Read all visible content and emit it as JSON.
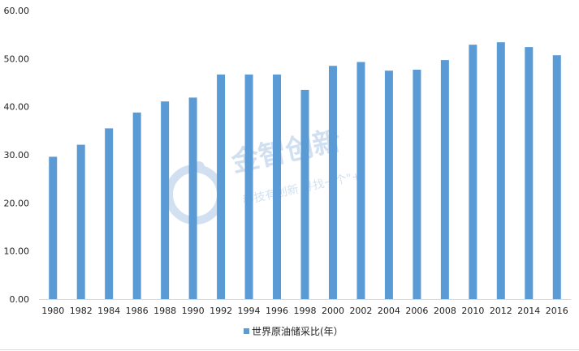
{
  "chart_data": {
    "type": "bar",
    "categories": [
      "1980",
      "1982",
      "1984",
      "1986",
      "1988",
      "1990",
      "1992",
      "1994",
      "1996",
      "1998",
      "2000",
      "2002",
      "2004",
      "2006",
      "2008",
      "2010",
      "2012",
      "2014",
      "2016"
    ],
    "series": [
      {
        "name": "世界原油储采比(年）",
        "color": "#5b9bd5",
        "values": [
          29.6,
          32.1,
          35.5,
          38.8,
          41.1,
          41.9,
          46.7,
          46.7,
          46.7,
          43.5,
          48.5,
          49.3,
          47.5,
          47.7,
          49.7,
          52.9,
          53.4,
          52.4,
          50.7
        ]
      }
    ],
    "ylim": [
      0,
      60
    ],
    "yticks": [
      "0.00",
      "10.00",
      "20.00",
      "30.00",
      "40.00",
      "50.00",
      "60.00"
    ],
    "legend": "bottom",
    "grid": false
  },
  "watermark": {
    "title": "金智创新",
    "subtitle": "科技有创新 寻找一个\"+\"",
    "icon": "company-logo-icon"
  }
}
